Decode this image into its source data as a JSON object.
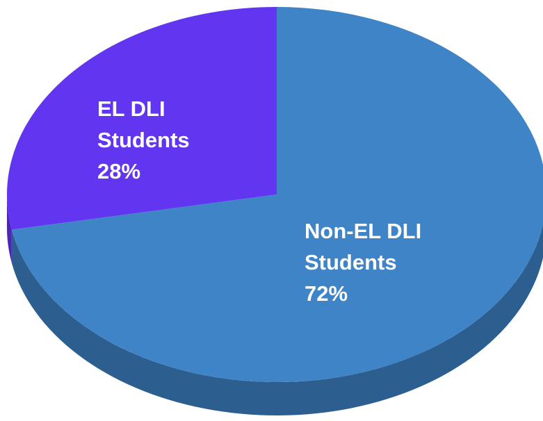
{
  "chart_data": {
    "type": "pie",
    "categories": [
      "EL DLI Students",
      "Non-EL DLI Students"
    ],
    "values": [
      28,
      72
    ],
    "value_labels": [
      "28%",
      "72%"
    ],
    "colors": [
      "#6236f0",
      "#3f84c6"
    ],
    "side_colors": [
      "#4a25b8",
      "#2d5e90"
    ]
  }
}
